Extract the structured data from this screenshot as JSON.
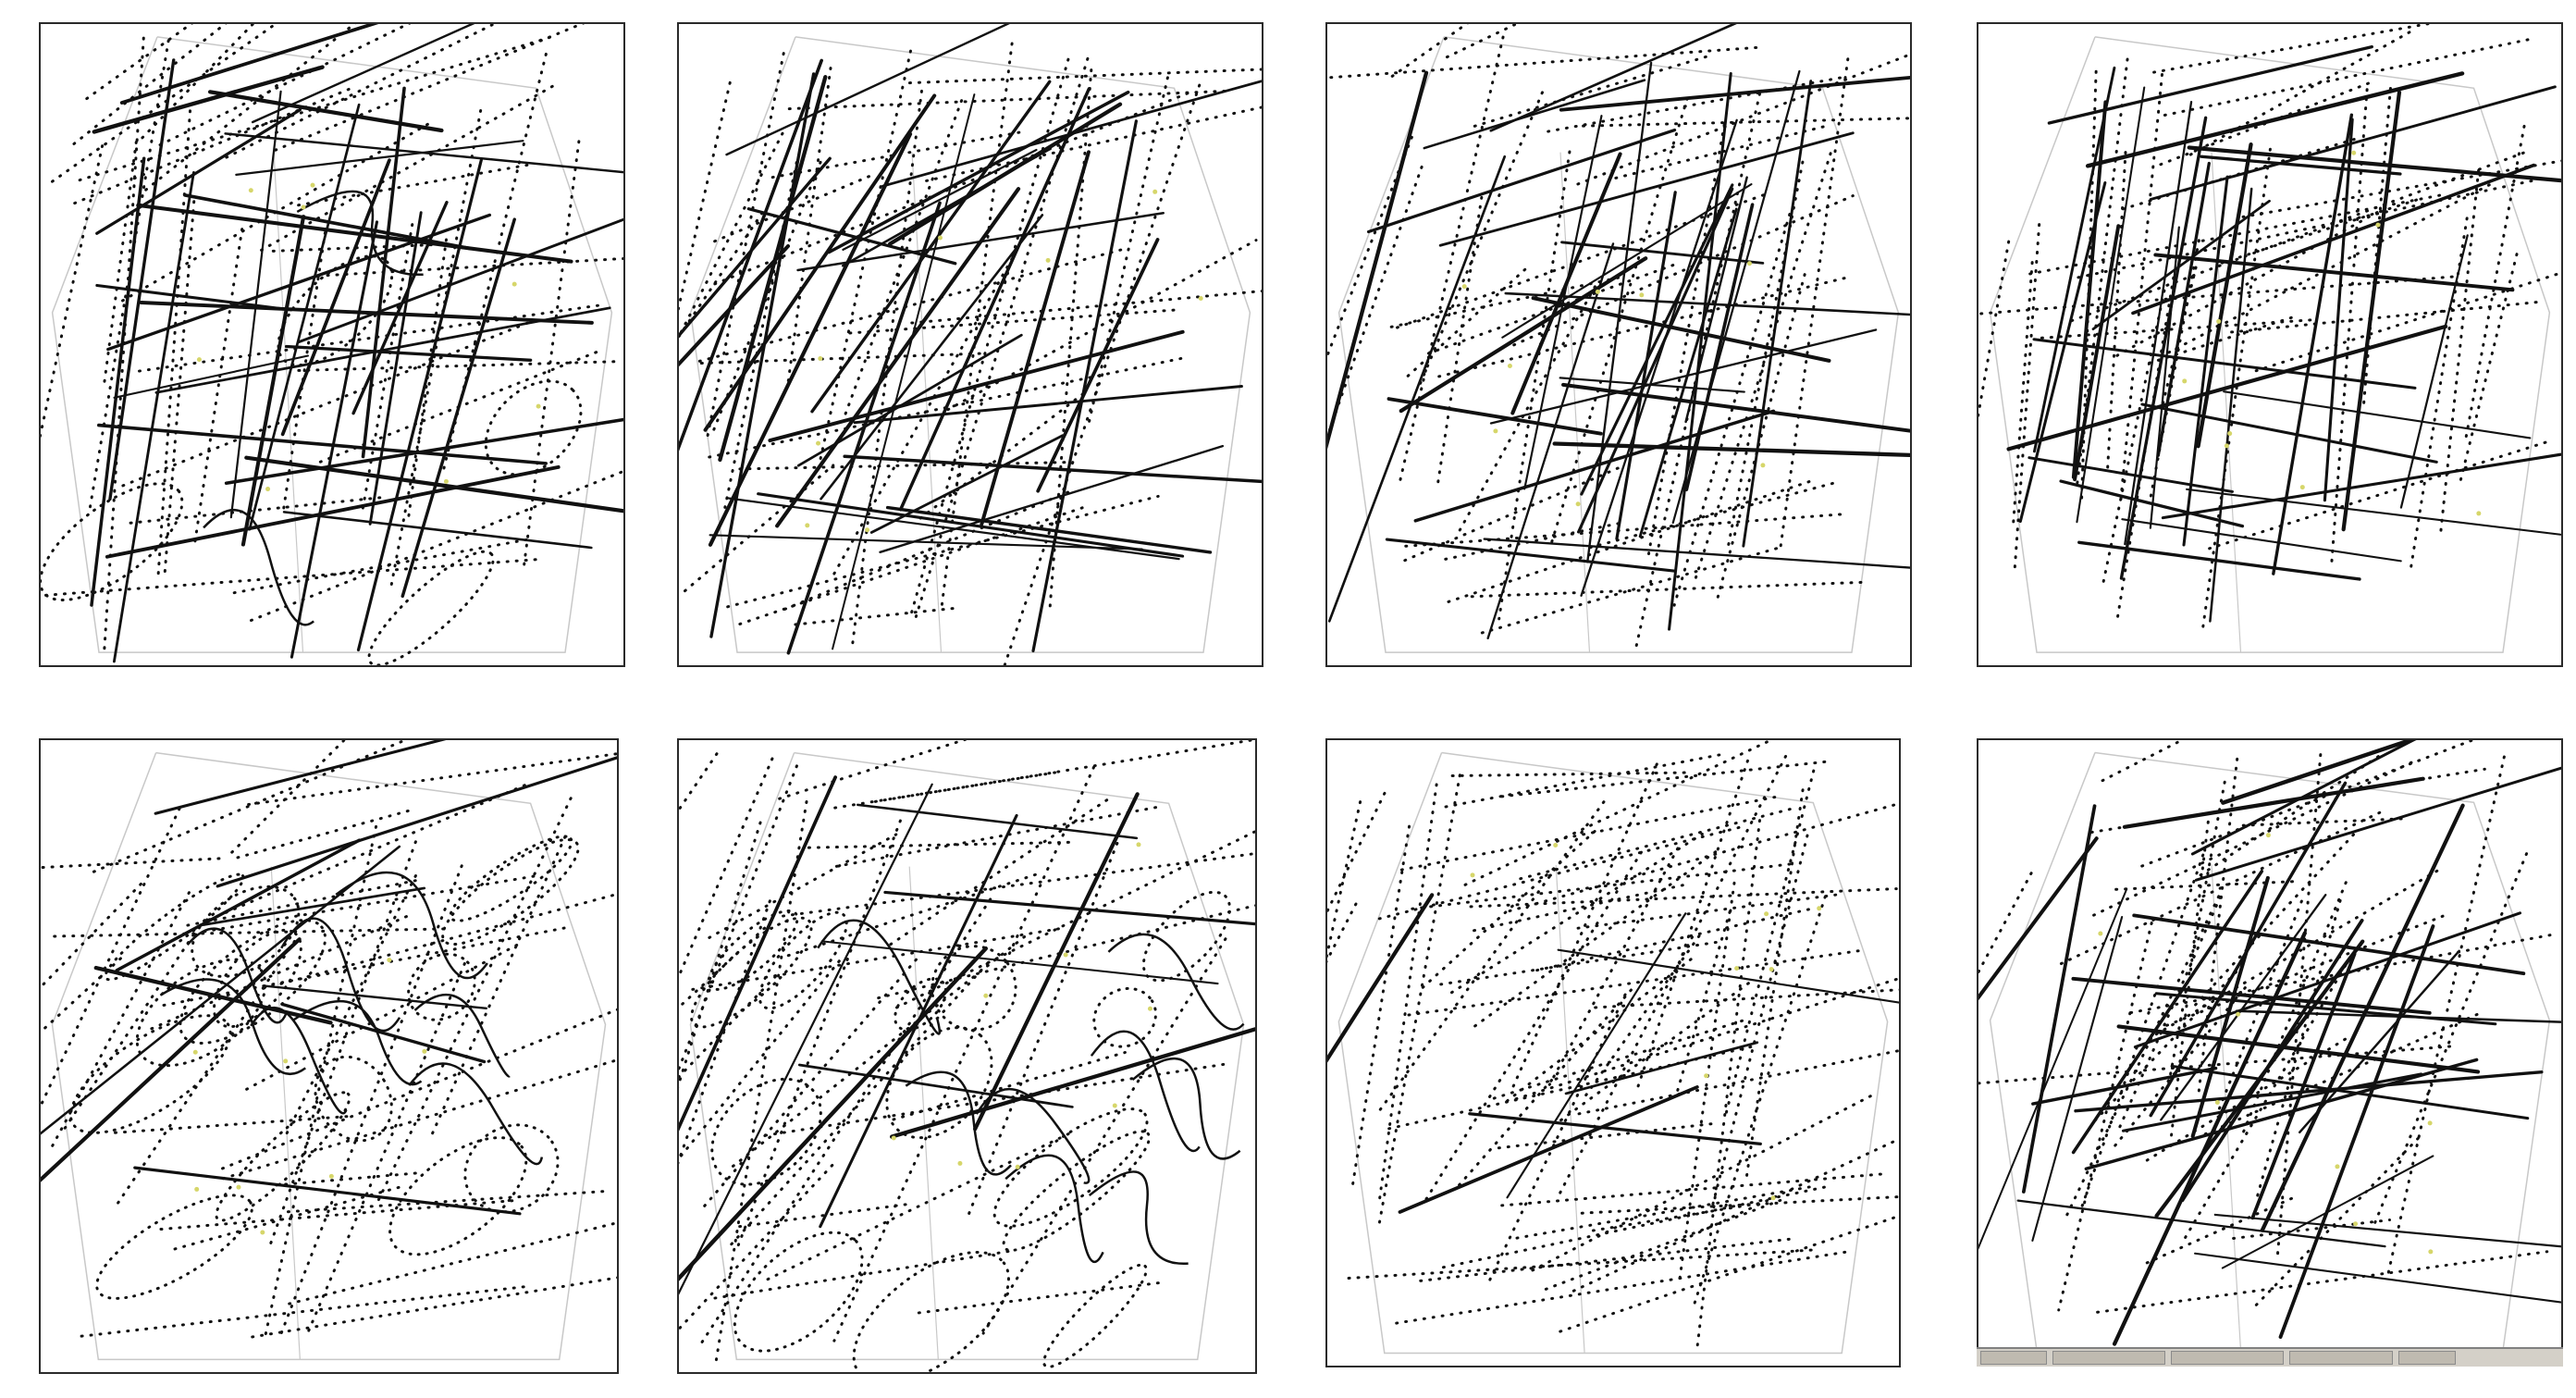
{
  "panels": [
    {
      "id": "p1",
      "name": "sketch-panel-1"
    },
    {
      "id": "p2",
      "name": "sketch-panel-2"
    },
    {
      "id": "p3",
      "name": "sketch-panel-3"
    },
    {
      "id": "p4",
      "name": "sketch-panel-4"
    },
    {
      "id": "p5",
      "name": "sketch-panel-5"
    },
    {
      "id": "p6",
      "name": "sketch-panel-6"
    },
    {
      "id": "p7",
      "name": "sketch-panel-7"
    },
    {
      "id": "p8",
      "name": "sketch-panel-8"
    }
  ],
  "colors": {
    "ink": "#111111",
    "guide": "#c8c8c8",
    "marker": "#d6d66a"
  }
}
